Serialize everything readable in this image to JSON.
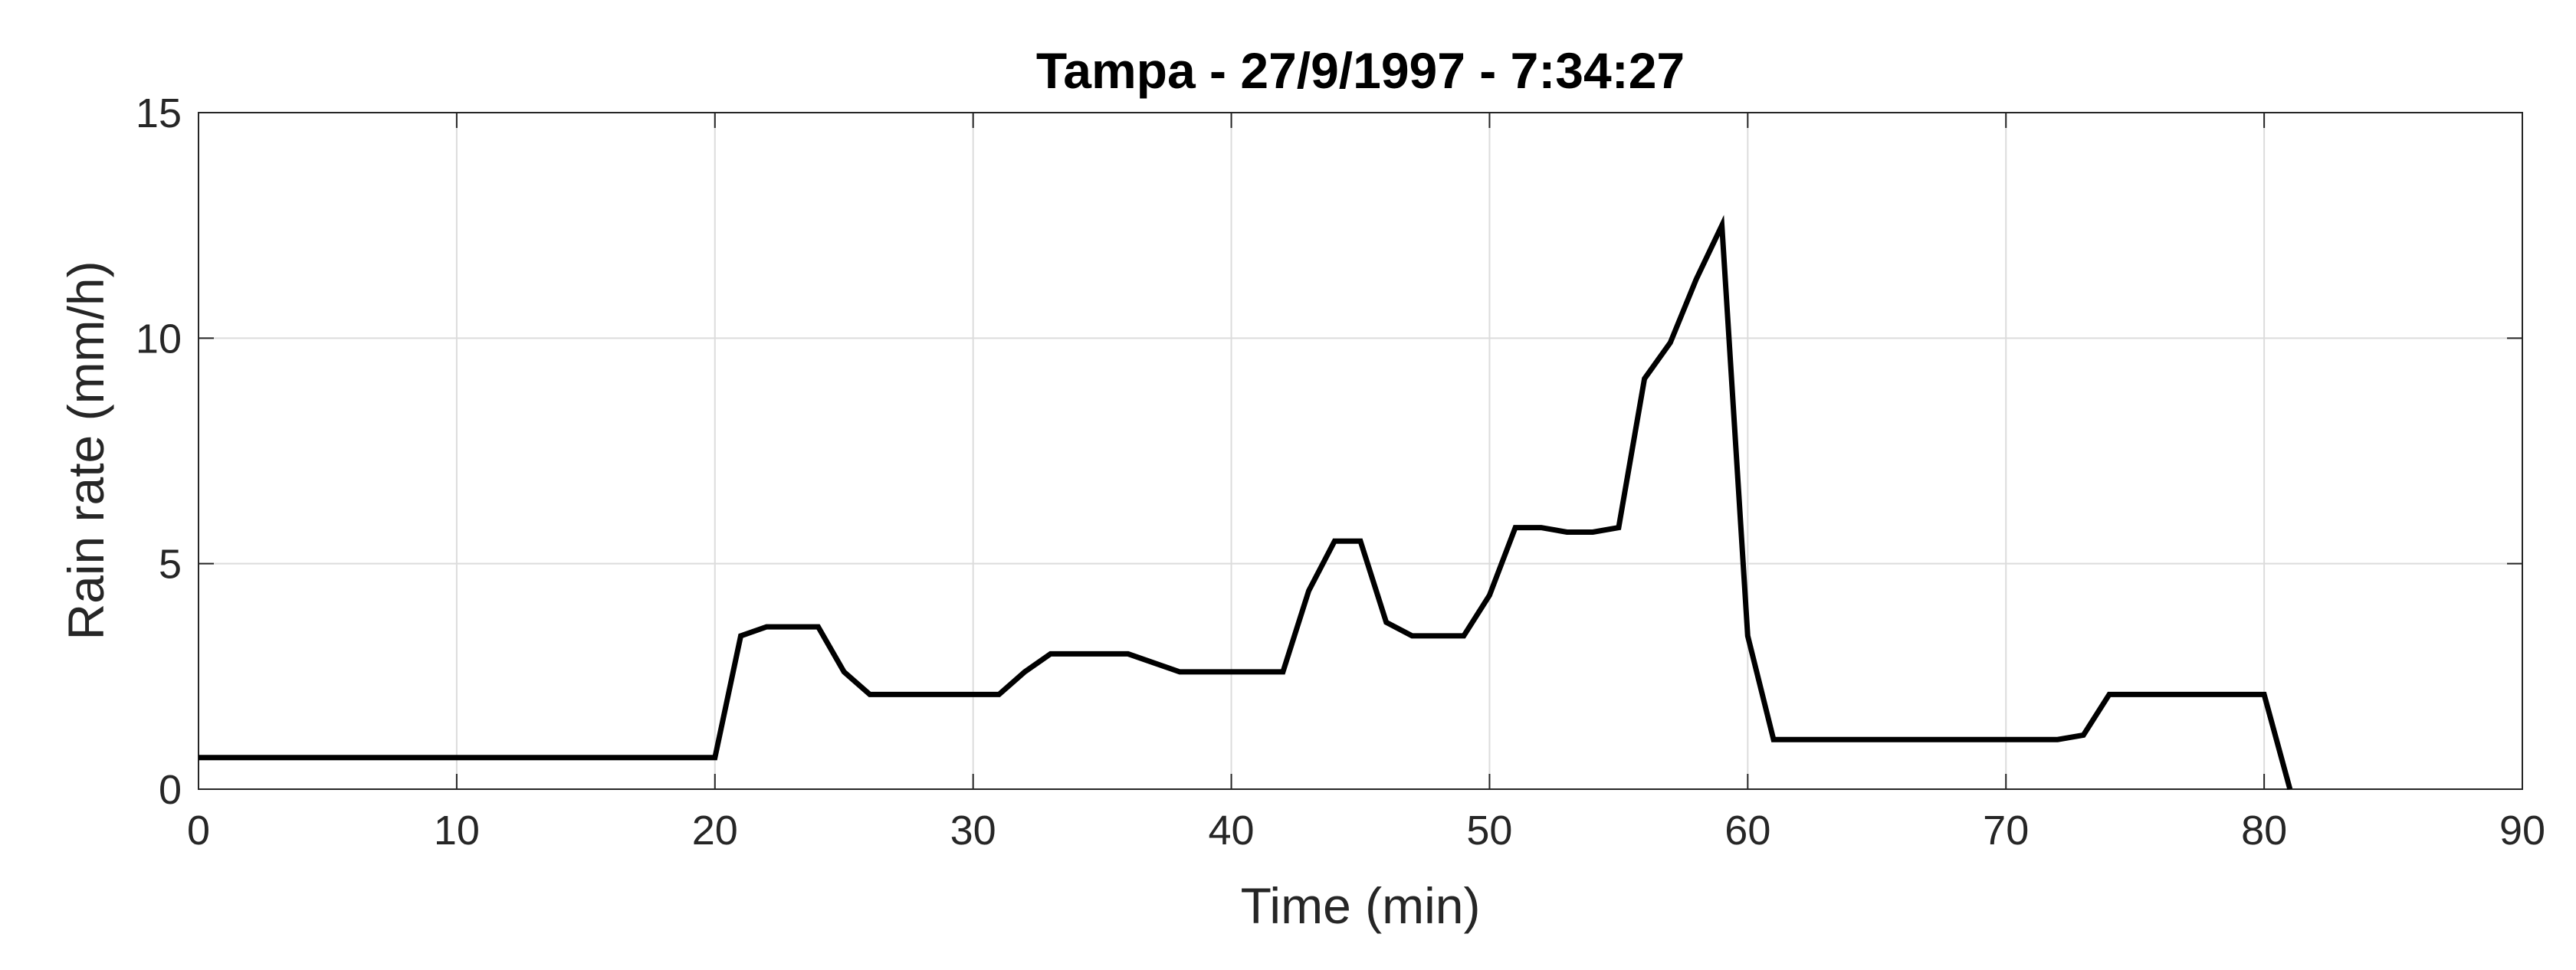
{
  "chart_data": {
    "type": "line",
    "title": "Tampa - 27/9/1997 - 7:34:27",
    "xlabel": "Time (min)",
    "ylabel": "Rain rate (mm/h)",
    "xlim": [
      0,
      90
    ],
    "ylim": [
      0,
      15
    ],
    "xticks": [
      "0",
      "10",
      "20",
      "30",
      "40",
      "50",
      "60",
      "70",
      "80",
      "90"
    ],
    "yticks": [
      "0",
      "5",
      "10",
      "15"
    ],
    "grid": true,
    "line_color": "#000000",
    "x": [
      0,
      20,
      21,
      22,
      24,
      25,
      26,
      31,
      32,
      33,
      36,
      38,
      42,
      43,
      44,
      45,
      46,
      47,
      49,
      50,
      51,
      52,
      53,
      54,
      55,
      56,
      57,
      58,
      59,
      60,
      61,
      72,
      73,
      74,
      80,
      81
    ],
    "y": [
      0.7,
      0.7,
      3.4,
      3.6,
      3.6,
      2.6,
      2.1,
      2.1,
      2.6,
      3.0,
      3.0,
      2.6,
      2.6,
      4.4,
      5.5,
      5.5,
      3.7,
      3.4,
      3.4,
      4.3,
      5.8,
      5.8,
      5.7,
      5.7,
      5.8,
      9.1,
      9.9,
      11.3,
      12.5,
      3.4,
      1.1,
      1.1,
      1.2,
      2.1,
      2.1,
      0.0
    ]
  }
}
